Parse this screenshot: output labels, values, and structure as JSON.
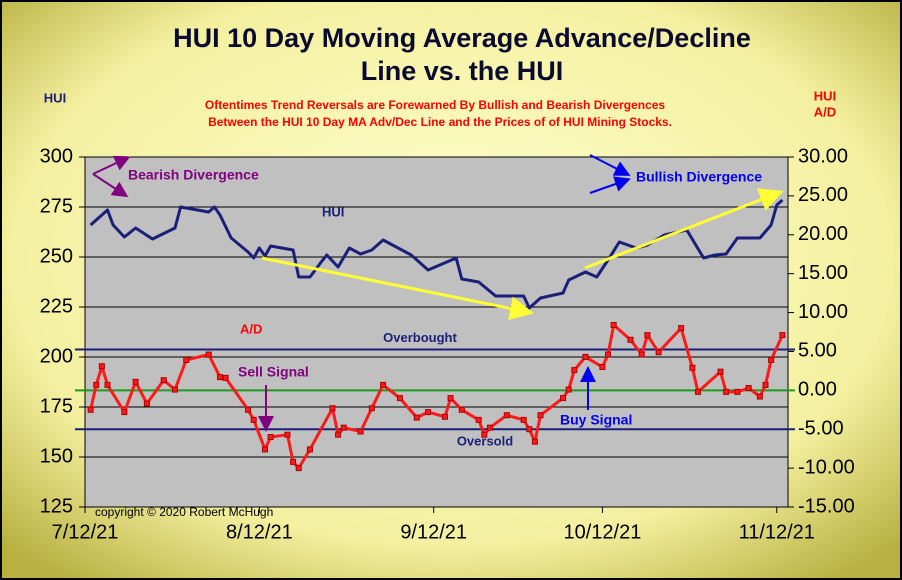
{
  "chart_data": {
    "type": "line",
    "title": [
      "HUI 10 Day Moving Average Advance/Decline",
      "Line vs. the HUI"
    ],
    "subtitle": [
      "Oftentimes Trend Reversals are Forewarned By Bullish and Bearish Divergences",
      "Between the HUI 10 Day MA Adv/Dec Line and the Prices of of HUI Mining Stocks."
    ],
    "ylabel": "HUI",
    "y2label": [
      "HUI",
      "A/D"
    ],
    "xlim": [
      "2021-07-12",
      "2021-11-14"
    ],
    "xticks": [
      {
        "value": "2021-07-12",
        "label": "7/12/21"
      },
      {
        "value": "2021-08-12",
        "label": "8/12/21"
      },
      {
        "value": "2021-09-12",
        "label": "9/12/21"
      },
      {
        "value": "2021-10-12",
        "label": "10/12/21"
      },
      {
        "value": "2021-11-12",
        "label": "11/12/21"
      }
    ],
    "ylim": [
      125,
      300
    ],
    "yticks": [
      125,
      150,
      175,
      200,
      225,
      250,
      275,
      300
    ],
    "y2lim": [
      -15,
      30
    ],
    "y2ticks": [
      {
        "value": -15,
        "label": "-15.00"
      },
      {
        "value": -10,
        "label": "-10.00"
      },
      {
        "value": -5,
        "label": "-5.00"
      },
      {
        "value": 0,
        "label": "0.00"
      },
      {
        "value": 5,
        "label": "5.00"
      },
      {
        "value": 10,
        "label": "10.00"
      },
      {
        "value": 15,
        "label": "15.00"
      },
      {
        "value": 20,
        "label": "20.00"
      },
      {
        "value": 25,
        "label": "25.00"
      },
      {
        "value": 30,
        "label": "30.00"
      }
    ],
    "grid": true,
    "series": [
      {
        "name": "HUI",
        "color": "#1a1f7a",
        "markers": false,
        "x": [
          "2021-07-13",
          "2021-07-16",
          "2021-07-17",
          "2021-07-19",
          "2021-07-21",
          "2021-07-24",
          "2021-07-28",
          "2021-07-29",
          "2021-08-03",
          "2021-08-04",
          "2021-08-05",
          "2021-08-07",
          "2021-08-10",
          "2021-08-11",
          "2021-08-12",
          "2021-08-13",
          "2021-08-14",
          "2021-08-18",
          "2021-08-19",
          "2021-08-21",
          "2021-08-23",
          "2021-08-24",
          "2021-08-26",
          "2021-08-28",
          "2021-08-30",
          "2021-09-01",
          "2021-09-03",
          "2021-09-08",
          "2021-09-11",
          "2021-09-16",
          "2021-09-17",
          "2021-09-20",
          "2021-09-23",
          "2021-09-28",
          "2021-09-29",
          "2021-10-01",
          "2021-10-05",
          "2021-10-06",
          "2021-10-09",
          "2021-10-11",
          "2021-10-13",
          "2021-10-15",
          "2021-10-18",
          "2021-10-20",
          "2021-10-23",
          "2021-10-27",
          "2021-10-30",
          "2021-11-01",
          "2021-11-03",
          "2021-11-05",
          "2021-11-09",
          "2021-11-11",
          "2021-11-12",
          "2021-11-13"
        ],
        "values": [
          266,
          273.5,
          266,
          260,
          264.5,
          259,
          264.5,
          275,
          272.5,
          275,
          271,
          259.5,
          252.5,
          249.5,
          254.5,
          250.5,
          255.5,
          253.5,
          240,
          240,
          247.5,
          251,
          245,
          254.5,
          251.5,
          253.5,
          258.5,
          251,
          243.5,
          249.5,
          239,
          237.5,
          230.5,
          230.5,
          224.5,
          229.5,
          232,
          238.5,
          242.5,
          240,
          248.5,
          257.5,
          254.5,
          256,
          261,
          263.5,
          249.5,
          251,
          251.5,
          259.5,
          259.5,
          266,
          276,
          278.5
        ]
      },
      {
        "name": "A/D",
        "color": "#ff1a1a",
        "axis": "y2",
        "markers": true,
        "x": [
          "2021-07-13",
          "2021-07-14",
          "2021-07-15",
          "2021-07-16",
          "2021-07-19",
          "2021-07-21",
          "2021-07-23",
          "2021-07-26",
          "2021-07-28",
          "2021-07-30",
          "2021-08-03",
          "2021-08-05",
          "2021-08-06",
          "2021-08-10",
          "2021-08-11",
          "2021-08-13",
          "2021-08-14",
          "2021-08-17",
          "2021-08-18",
          "2021-08-19",
          "2021-08-21",
          "2021-08-25",
          "2021-08-26",
          "2021-08-27",
          "2021-08-30",
          "2021-09-01",
          "2021-09-03",
          "2021-09-06",
          "2021-09-09",
          "2021-09-11",
          "2021-09-14",
          "2021-09-15",
          "2021-09-17",
          "2021-09-20",
          "2021-09-21",
          "2021-09-22",
          "2021-09-25",
          "2021-09-28",
          "2021-09-29",
          "2021-09-30",
          "2021-10-01",
          "2021-10-05",
          "2021-10-06",
          "2021-10-07",
          "2021-10-09",
          "2021-10-12",
          "2021-10-13",
          "2021-10-14",
          "2021-10-17",
          "2021-10-19",
          "2021-10-20",
          "2021-10-22",
          "2021-10-26",
          "2021-10-28",
          "2021-10-29",
          "2021-11-02",
          "2021-11-03",
          "2021-11-05",
          "2021-11-07",
          "2021-11-09",
          "2021-11-10",
          "2021-11-11",
          "2021-11-13"
        ],
        "values": [
          -2.5,
          0.7,
          3.1,
          0.7,
          -2.8,
          1.1,
          -1.7,
          1.3,
          0.1,
          3.9,
          4.6,
          1.7,
          1.6,
          -2.5,
          -3.8,
          -7.6,
          -6.0,
          -5.7,
          -9.2,
          -10.0,
          -7.6,
          -2.3,
          -5.7,
          -4.8,
          -5.3,
          -2.3,
          0.7,
          -1.0,
          -3.5,
          -2.8,
          -3.4,
          -1.0,
          -2.5,
          -3.8,
          -5.7,
          -4.8,
          -3.2,
          -3.8,
          -5.0,
          -6.6,
          -3.2,
          -1.0,
          0.1,
          2.6,
          4.3,
          3.0,
          4.6,
          8.4,
          6.5,
          4.6,
          7.1,
          4.9,
          8.0,
          2.9,
          -0.2,
          2.4,
          -0.2,
          -0.2,
          0.3,
          -0.8,
          0.7,
          3.9,
          7.1
        ]
      }
    ],
    "reference_lines": [
      {
        "value": 5.25,
        "axis": "y2",
        "color": "#1a1f7a",
        "label": "Overbought"
      },
      {
        "value": 0,
        "axis": "y2",
        "color": "#1f9a1f"
      },
      {
        "value": -5,
        "axis": "y2",
        "color": "#1a1f7a",
        "label": "Oversold"
      }
    ],
    "annotations": [
      "Bearish Divergence",
      "Bullish Divergence",
      "HUI",
      "A/D",
      "Sell Signal",
      "Buy Signal",
      "copyright © 2020 Robert McHugh"
    ]
  }
}
